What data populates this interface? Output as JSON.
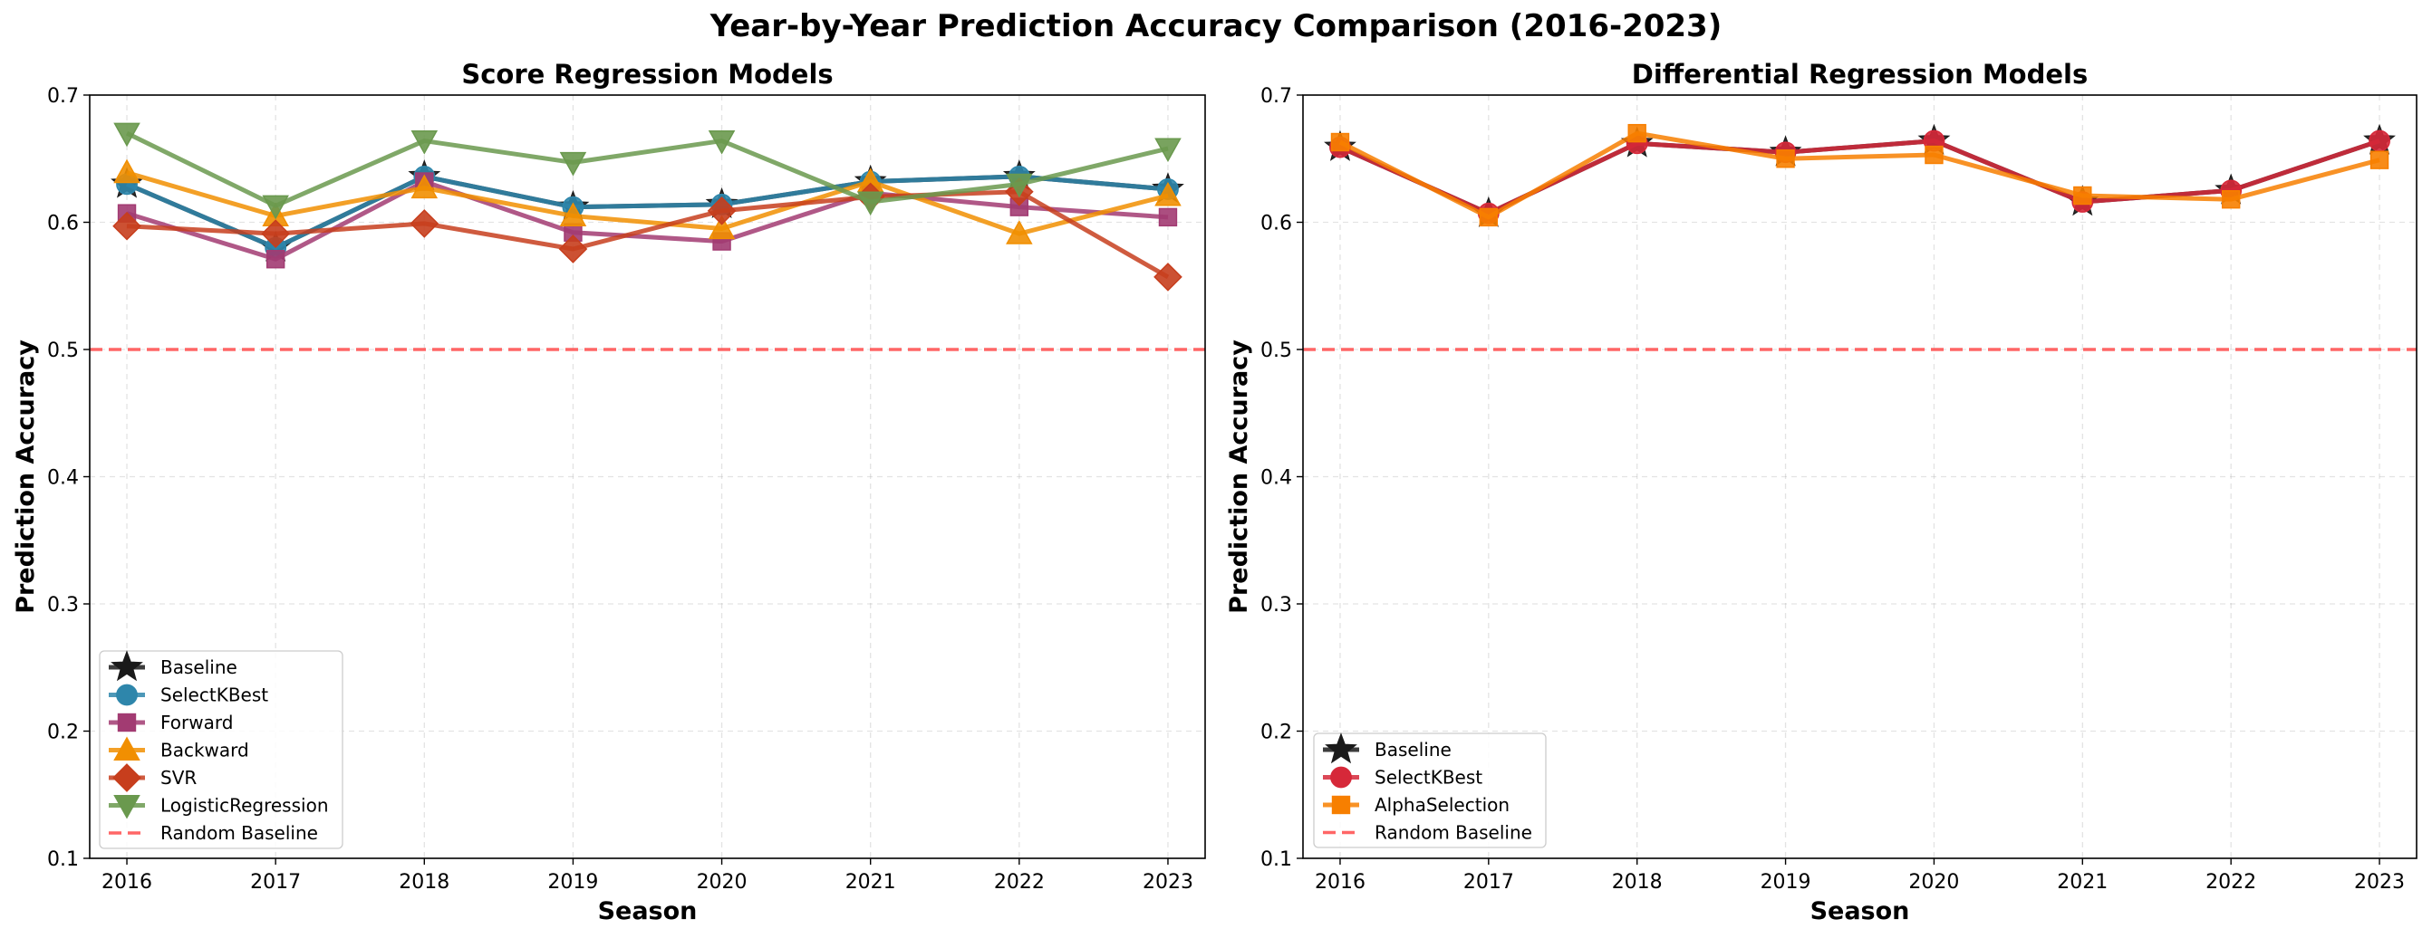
{
  "figure": {
    "title": "Year-by-Year Prediction Accuracy Comparison (2016-2023)"
  },
  "chart_data": [
    {
      "type": "line",
      "title": "Score Regression Models",
      "xlabel": "Season",
      "ylabel": "Prediction Accuracy",
      "x": [
        2016,
        2017,
        2018,
        2019,
        2020,
        2021,
        2022,
        2023
      ],
      "ylim": [
        0.1,
        0.7
      ],
      "yticks": [
        0.1,
        0.2,
        0.3,
        0.4,
        0.5,
        0.6,
        0.7
      ],
      "grid": true,
      "legend_position": "lower-left",
      "reference_line": {
        "name": "Random Baseline",
        "y": 0.5,
        "color": "#ff5555",
        "style": "dashed"
      },
      "series": [
        {
          "name": "Baseline",
          "color": "#1a1a1a",
          "marker": "star",
          "values": [
            0.63,
            0.58,
            0.636,
            0.612,
            0.614,
            0.632,
            0.636,
            0.626
          ]
        },
        {
          "name": "SelectKBest",
          "color": "#2e86ab",
          "marker": "circle",
          "values": [
            0.63,
            0.58,
            0.636,
            0.612,
            0.614,
            0.632,
            0.636,
            0.626
          ]
        },
        {
          "name": "Forward",
          "color": "#a23b72",
          "marker": "square",
          "values": [
            0.607,
            0.571,
            0.632,
            0.592,
            0.585,
            0.623,
            0.612,
            0.604
          ]
        },
        {
          "name": "Backward",
          "color": "#f18f01",
          "marker": "triangle-up",
          "values": [
            0.639,
            0.605,
            0.627,
            0.605,
            0.595,
            0.632,
            0.591,
            0.621
          ]
        },
        {
          "name": "SVR",
          "color": "#c73e1d",
          "marker": "diamond",
          "values": [
            0.597,
            0.591,
            0.599,
            0.579,
            0.609,
            0.62,
            0.624,
            0.557
          ]
        },
        {
          "name": "LogisticRegression",
          "color": "#6a994e",
          "marker": "triangle-down",
          "values": [
            0.67,
            0.613,
            0.664,
            0.647,
            0.664,
            0.616,
            0.63,
            0.658
          ]
        }
      ]
    },
    {
      "type": "line",
      "title": "Differential Regression Models",
      "xlabel": "Season",
      "ylabel": "Prediction Accuracy",
      "x": [
        2016,
        2017,
        2018,
        2019,
        2020,
        2021,
        2022,
        2023
      ],
      "ylim": [
        0.1,
        0.7
      ],
      "yticks": [
        0.1,
        0.2,
        0.3,
        0.4,
        0.5,
        0.6,
        0.7
      ],
      "grid": true,
      "legend_position": "lower-left",
      "reference_line": {
        "name": "Random Baseline",
        "y": 0.5,
        "color": "#ff5555",
        "style": "dashed"
      },
      "series": [
        {
          "name": "Baseline",
          "color": "#1a1a1a",
          "marker": "star",
          "values": [
            0.659,
            0.607,
            0.662,
            0.655,
            0.664,
            0.616,
            0.625,
            0.664
          ]
        },
        {
          "name": "SelectKBest",
          "color": "#d62839",
          "marker": "circle",
          "values": [
            0.659,
            0.607,
            0.662,
            0.655,
            0.664,
            0.616,
            0.625,
            0.664
          ]
        },
        {
          "name": "AlphaSelection",
          "color": "#f77f00",
          "marker": "square",
          "values": [
            0.663,
            0.604,
            0.67,
            0.65,
            0.653,
            0.621,
            0.618,
            0.649
          ]
        }
      ]
    }
  ]
}
